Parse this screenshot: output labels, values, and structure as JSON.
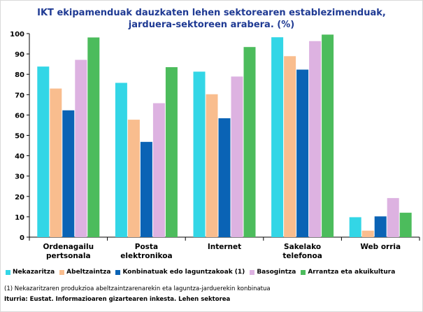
{
  "title_line1": "IKT ekipamenduak dauzkaten lehen sektorearen establezimenduak,",
  "title_line2": "jarduera-sektoreen arabera. (%)",
  "note": "(1)  Nekazaritzaren produkzioa abeltzaintzarenarekin eta laguntza-jarduerekin konbinatua",
  "source": "Iturria: Eustat. Informazioaren gizartearen inkesta. Lehen sektorea",
  "chart_data": {
    "type": "bar",
    "title": "IKT ekipamenduak dauzkaten lehen sektorearen establezimenduak, jarduera-sektoreen arabera. (%)",
    "xlabel": "",
    "ylabel": "",
    "ylim": [
      0,
      100
    ],
    "yticks": [
      0,
      10,
      20,
      30,
      40,
      50,
      60,
      70,
      80,
      90,
      100
    ],
    "grid": false,
    "legend_position": "bottom",
    "categories": [
      [
        "Ordenagailu",
        "pertsonala"
      ],
      [
        "Posta",
        "elektronikoa"
      ],
      [
        "Internet"
      ],
      [
        "Sakelako",
        "telefonoa"
      ],
      [
        "Web orria"
      ]
    ],
    "series": [
      {
        "name": "Nekazaritza",
        "color": "#33d6e6",
        "values": [
          83.8,
          75.8,
          81.3,
          98.2,
          9.8
        ]
      },
      {
        "name": "Abeltzaintza",
        "color": "#f9bd8e",
        "values": [
          73.0,
          57.7,
          70.2,
          88.9,
          3.2
        ]
      },
      {
        "name": "Konbinatuak edo laguntzakoak (1)",
        "color": "#0a63b5",
        "values": [
          62.3,
          46.8,
          58.4,
          82.3,
          10.2
        ]
      },
      {
        "name": "Basogintza",
        "color": "#ddb2e1",
        "values": [
          87.1,
          65.8,
          78.9,
          96.3,
          19.2
        ]
      },
      {
        "name": "Arrantza eta akuikultura",
        "color": "#4cbc5c",
        "values": [
          98.1,
          83.5,
          93.4,
          99.5,
          12.0
        ]
      }
    ]
  }
}
